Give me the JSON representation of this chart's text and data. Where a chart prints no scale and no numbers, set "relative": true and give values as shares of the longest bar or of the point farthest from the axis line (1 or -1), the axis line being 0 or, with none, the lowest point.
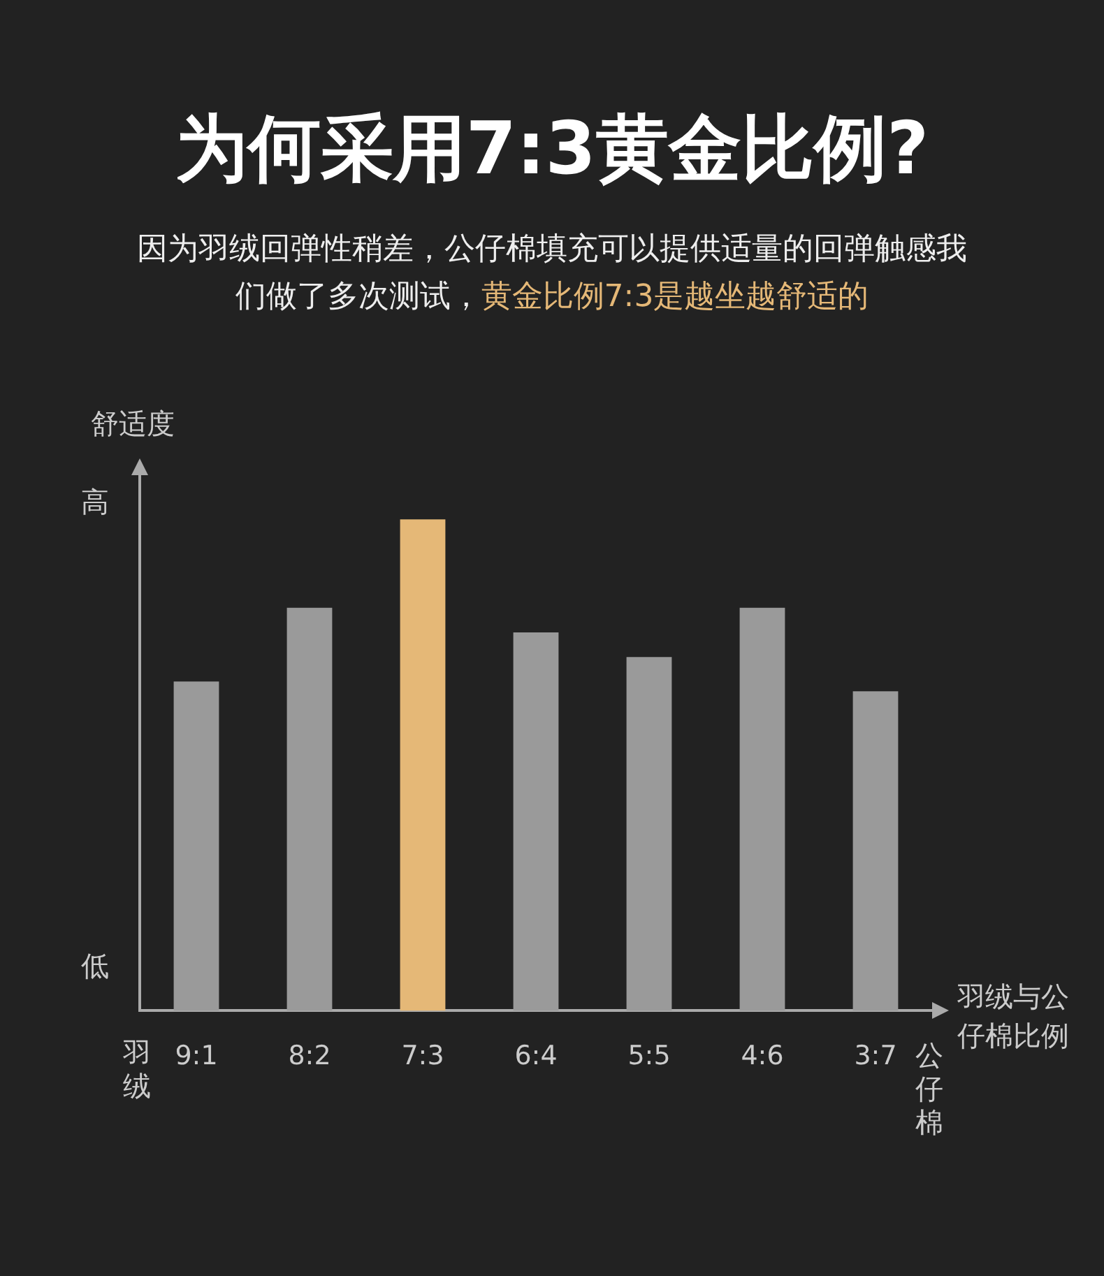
{
  "chart_data": {
    "type": "bar",
    "title": "为何采用7:3黄金比例?",
    "subtitle": "因为羽绒回弹性稍差，公仔棉填充可以提供适量的回弹触感我们做了多次测试，",
    "annotations": [
      "黄金比例7:3是越坐越舒适的",
      "高",
      "低",
      "羽绒",
      "公仔棉"
    ],
    "xlabel": "羽绒与公仔棉比例",
    "ylabel": "舒适度",
    "categories": [
      "9:1",
      "8:2",
      "7:3",
      "6:4",
      "5:5",
      "4:6",
      "3:7"
    ],
    "values": [
      0.67,
      0.82,
      1,
      0.77,
      0.72,
      0.82,
      0.65
    ],
    "colors": [
      "#9a9a9a",
      "#9a9a9a",
      "#e5b877",
      "#9a9a9a",
      "#9a9a9a",
      "#9a9a9a",
      "#9a9a9a"
    ],
    "relative": true,
    "legend": false,
    "grid": false
  }
}
